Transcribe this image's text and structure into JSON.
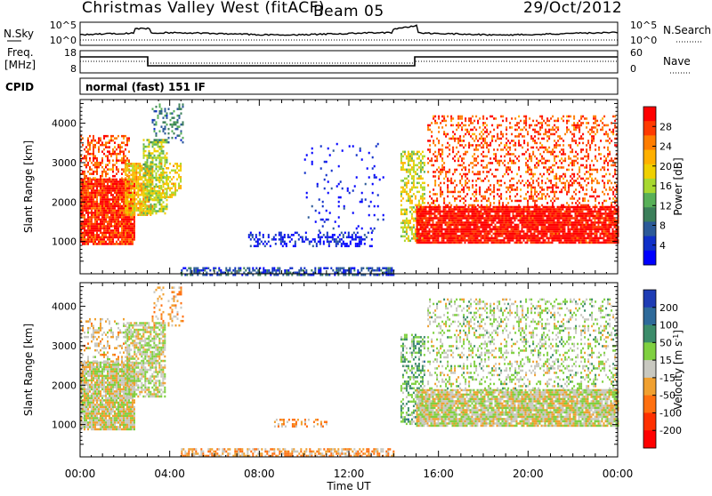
{
  "header": {
    "station": "Christmas Valley West (fitACF)",
    "beam": "Beam 05",
    "date": "29/Oct/2012",
    "cpid_label": "CPID",
    "cpid_value": "normal (fast) 151 IF"
  },
  "noise_panel": {
    "left_label": "N.Sky",
    "right_label": "N.Search",
    "left_ticks": [
      "10^5",
      "10^0"
    ],
    "right_ticks": [
      "10^5",
      "10^0"
    ]
  },
  "freq_panel": {
    "left_label_1": "Freq.",
    "left_label_2": "[MHz]",
    "right_label": "Nave",
    "left_ticks": [
      "18",
      "8"
    ],
    "right_ticks": [
      "60",
      "0"
    ]
  },
  "chart_data": [
    {
      "type": "heatmap",
      "name": "power",
      "ylabel": "Slant Range [km]",
      "yticks": [
        1000,
        2000,
        3000,
        4000
      ],
      "ylim": [
        180,
        4600
      ],
      "xlim": [
        0,
        24
      ],
      "colorbar": {
        "label": "Power [dB]",
        "ticks": [
          "28",
          "24",
          "20",
          "16",
          "12",
          "8",
          "4"
        ],
        "colors": [
          "#ff0000",
          "#ff3a00",
          "#ff7d00",
          "#ffb000",
          "#f0d000",
          "#a8d830",
          "#58b058",
          "#3c7f5a",
          "#2c5a98",
          "#1030c8",
          "#0000ff"
        ]
      },
      "regions": [
        {
          "t0": 0.0,
          "t1": 2.4,
          "r0": 950,
          "r1": 2600,
          "level": 0.1,
          "density": 0.92
        },
        {
          "t0": 0.0,
          "t1": 2.2,
          "r0": 2600,
          "r1": 3700,
          "level": 0.15,
          "density": 0.45
        },
        {
          "t0": 2.0,
          "t1": 3.2,
          "r0": 1700,
          "r1": 3000,
          "level": 0.35,
          "density": 0.75
        },
        {
          "t0": 2.8,
          "t1": 3.9,
          "r0": 1700,
          "r1": 3600,
          "level": 0.5,
          "density": 0.6
        },
        {
          "t0": 3.2,
          "t1": 4.6,
          "r0": 3500,
          "r1": 4500,
          "level": 0.7,
          "density": 0.25
        },
        {
          "t0": 3.5,
          "t1": 4.5,
          "r0": 2100,
          "r1": 3000,
          "level": 0.4,
          "density": 0.5
        },
        {
          "t0": 4.5,
          "t1": 14.0,
          "r0": 180,
          "r1": 350,
          "level": 0.8,
          "density": 0.55
        },
        {
          "t0": 7.5,
          "t1": 13.0,
          "r0": 900,
          "r1": 1250,
          "level": 0.92,
          "density": 0.35
        },
        {
          "t0": 10.0,
          "t1": 13.5,
          "r0": 1300,
          "r1": 3500,
          "level": 0.93,
          "density": 0.06
        },
        {
          "t0": 14.3,
          "t1": 15.4,
          "r0": 1000,
          "r1": 3300,
          "level": 0.45,
          "density": 0.5
        },
        {
          "t0": 15.0,
          "t1": 24.0,
          "r0": 950,
          "r1": 1900,
          "level": 0.05,
          "density": 0.9
        },
        {
          "t0": 15.5,
          "t1": 24.0,
          "r0": 1900,
          "r1": 4200,
          "level": 0.15,
          "density": 0.3
        }
      ]
    },
    {
      "type": "heatmap",
      "name": "velocity",
      "ylabel": "Slant Range [km]",
      "yticks": [
        1000,
        2000,
        3000,
        4000
      ],
      "ylim": [
        180,
        4600
      ],
      "xlim": [
        0,
        24
      ],
      "xticks": [
        "00:00",
        "04:00",
        "08:00",
        "12:00",
        "16:00",
        "20:00",
        "00:00"
      ],
      "xlabel": "Time UT",
      "colorbar": {
        "label": "Velocity [m s",
        "label_exp": "-1",
        "label_end": "]",
        "ticks": [
          "200",
          "100",
          "50",
          "15",
          "-15",
          "-50",
          "-100",
          "-200"
        ],
        "colors": [
          "#1e3cb4",
          "#2e6a9a",
          "#3c8c6a",
          "#7fd040",
          "#c8c8c0",
          "#f0a030",
          "#ff7010",
          "#ff3000",
          "#ff0000"
        ]
      },
      "regions": [
        {
          "t0": 0.0,
          "t1": 2.4,
          "r0": 900,
          "r1": 2600,
          "level": 0.5,
          "density": 0.92
        },
        {
          "t0": 0.0,
          "t1": 2.2,
          "r0": 2600,
          "r1": 3700,
          "level": 0.55,
          "density": 0.3
        },
        {
          "t0": 2.0,
          "t1": 3.8,
          "r0": 1700,
          "r1": 3600,
          "level": 0.48,
          "density": 0.7
        },
        {
          "t0": 3.2,
          "t1": 4.6,
          "r0": 3500,
          "r1": 4500,
          "level": 0.62,
          "density": 0.22
        },
        {
          "t0": 4.5,
          "t1": 14.0,
          "r0": 180,
          "r1": 400,
          "level": 0.62,
          "density": 0.6
        },
        {
          "t0": 8.5,
          "t1": 11.0,
          "r0": 950,
          "r1": 1150,
          "level": 0.62,
          "density": 0.3
        },
        {
          "t0": 14.3,
          "t1": 15.4,
          "r0": 1000,
          "r1": 3300,
          "level": 0.35,
          "density": 0.45
        },
        {
          "t0": 15.0,
          "t1": 24.0,
          "r0": 950,
          "r1": 1900,
          "level": 0.5,
          "density": 0.9
        },
        {
          "t0": 15.5,
          "t1": 24.0,
          "r0": 1900,
          "r1": 4200,
          "level": 0.45,
          "density": 0.3
        }
      ]
    }
  ]
}
